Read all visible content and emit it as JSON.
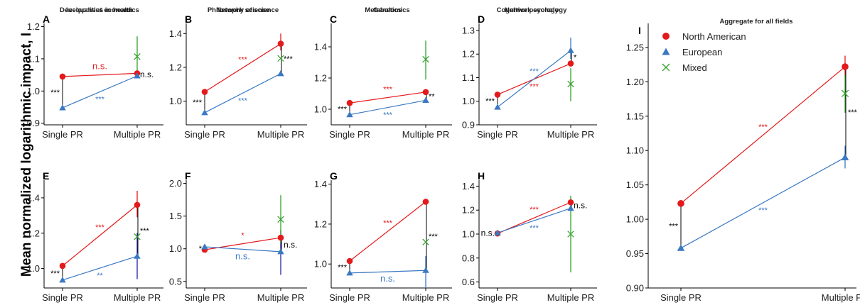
{
  "colors": {
    "north_american": "#e31a1c",
    "european": "#3a78c2",
    "mixed": "#33a02c",
    "bracket": "#000000",
    "bracket_blue": "#2222aa"
  },
  "ylabel": "Mean normalized logarithmic impact, I",
  "legend": [
    "North American",
    "European",
    "Mixed"
  ],
  "chart_data": [
    {
      "id": "A",
      "title": "Inequalities in health",
      "type": "line",
      "x": [
        "Single PR",
        "Multiple PR"
      ],
      "ylim": [
        0.895,
        1.21
      ],
      "yticks": [
        "0.9",
        "1.0",
        "1.1",
        "1.2"
      ],
      "yticks_v": [
        0.9,
        1.0,
        1.1,
        1.2
      ],
      "series": [
        {
          "name": "North American",
          "values": [
            1.045,
            1.055
          ]
        },
        {
          "name": "European",
          "values": [
            0.948,
            1.047
          ]
        },
        {
          "name": "Mixed",
          "values": [
            null,
            1.107
          ],
          "err": [
            null,
            [
              1.04,
              1.17
            ]
          ]
        }
      ],
      "sig": {
        "na": "n.s.",
        "eu": "***",
        "single": "***",
        "multiple": "n.s."
      }
    },
    {
      "id": "B",
      "title": "Network science",
      "type": "line",
      "x": [
        "Single PR",
        "Multiple PR"
      ],
      "ylim": [
        0.86,
        1.46
      ],
      "yticks": [
        "1.0",
        "1.2",
        "1.4"
      ],
      "yticks_v": [
        1.0,
        1.2,
        1.4
      ],
      "series": [
        {
          "name": "North American",
          "values": [
            1.055,
            1.34
          ],
          "err": [
            null,
            [
              1.3,
              1.4
            ]
          ]
        },
        {
          "name": "European",
          "values": [
            0.932,
            1.163
          ]
        },
        {
          "name": "Mixed",
          "values": [
            null,
            1.253
          ]
        }
      ],
      "sig": {
        "na": "***",
        "eu": "***",
        "single": "***",
        "multiple": "***"
      }
    },
    {
      "id": "C",
      "title": "Metabolomics",
      "type": "line",
      "x": [
        "Single PR",
        "Multiple PR"
      ],
      "ylim": [
        0.9,
        1.55
      ],
      "yticks": [
        "1.0",
        "1.2",
        "1.4"
      ],
      "yticks_v": [
        1.0,
        1.2,
        1.4
      ],
      "series": [
        {
          "name": "North American",
          "values": [
            1.04,
            1.11
          ]
        },
        {
          "name": "European",
          "values": [
            0.965,
            1.057
          ]
        },
        {
          "name": "Mixed",
          "values": [
            null,
            1.32
          ],
          "err": [
            null,
            [
              1.19,
              1.44
            ]
          ]
        }
      ],
      "sig": {
        "na": "***",
        "eu": "***",
        "single": "***",
        "multiple": "**"
      }
    },
    {
      "id": "D",
      "title": "Network ecology",
      "type": "line",
      "x": [
        "Single PR",
        "Multiple PR"
      ],
      "ylim": [
        0.9,
        1.33
      ],
      "yticks": [
        "0.9",
        "1.0",
        "1.1",
        "1.2",
        "1.3"
      ],
      "yticks_v": [
        0.9,
        1.0,
        1.1,
        1.2,
        1.3
      ],
      "series": [
        {
          "name": "North American",
          "values": [
            1.028,
            1.16
          ]
        },
        {
          "name": "European",
          "values": [
            0.975,
            1.215
          ],
          "err": [
            null,
            [
              1.18,
              1.27
            ]
          ]
        },
        {
          "name": "Mixed",
          "values": [
            null,
            1.073
          ],
          "err": [
            null,
            [
              1.0,
              1.14
            ]
          ]
        }
      ],
      "sig": {
        "na": "***",
        "eu": "***",
        "single": "***",
        "multiple": "*"
      }
    },
    {
      "id": "E",
      "title": "Development economics",
      "type": "line",
      "x": [
        "Single PR",
        "Multiple PR"
      ],
      "ylim": [
        0.89,
        1.5
      ],
      "yticks": [
        "1.0",
        "1.2",
        "1.4"
      ],
      "yticks_v": [
        1.0,
        1.2,
        1.4
      ],
      "series": [
        {
          "name": "North American",
          "values": [
            1.015,
            1.36
          ],
          "err": [
            null,
            [
              1.29,
              1.44
            ]
          ]
        },
        {
          "name": "European",
          "values": [
            0.935,
            1.07
          ],
          "err": [
            null,
            [
              0.94,
              1.2
            ]
          ]
        },
        {
          "name": "Mixed",
          "values": [
            null,
            1.18
          ]
        }
      ],
      "sig": {
        "na": "***",
        "eu": "**",
        "single": "***",
        "multiple": "***"
      }
    },
    {
      "id": "F",
      "title": "Philosophy of science",
      "type": "line",
      "x": [
        "Single PR",
        "Multiple PR"
      ],
      "ylim": [
        0.4,
        2.05
      ],
      "yticks": [
        "0.5",
        "1.0",
        "1.5",
        "2.0"
      ],
      "yticks_v": [
        0.5,
        1.0,
        1.5,
        2.0
      ],
      "series": [
        {
          "name": "North American",
          "values": [
            0.985,
            1.17
          ]
        },
        {
          "name": "European",
          "values": [
            1.03,
            0.955
          ],
          "err": [
            null,
            [
              0.6,
              1.29
            ]
          ]
        },
        {
          "name": "Mixed",
          "values": [
            null,
            1.45
          ],
          "err": [
            null,
            [
              1.1,
              1.82
            ]
          ]
        }
      ],
      "sig": {
        "na": "*",
        "eu": "n.s.",
        "single": "*",
        "multiple": "n.s."
      }
    },
    {
      "id": "G",
      "title": "Genetics",
      "type": "line",
      "x": [
        "Single PR",
        "Multiple PR"
      ],
      "ylim": [
        0.88,
        1.42
      ],
      "yticks": [
        "1.0",
        "1.2",
        "1.4"
      ],
      "yticks_v": [
        1.0,
        1.2,
        1.4
      ],
      "series": [
        {
          "name": "North American",
          "values": [
            1.015,
            1.312
          ]
        },
        {
          "name": "European",
          "values": [
            0.955,
            0.968
          ],
          "err": [
            null,
            [
              0.88,
              1.04
            ]
          ]
        },
        {
          "name": "Mixed",
          "values": [
            null,
            1.11
          ]
        }
      ],
      "sig": {
        "na": "***",
        "eu": "n.s.",
        "single": "***",
        "multiple": "***"
      }
    },
    {
      "id": "H",
      "title": "Cognitive psychology",
      "type": "line",
      "x": [
        "Single PR",
        "Multiple PR"
      ],
      "ylim": [
        0.55,
        1.45
      ],
      "yticks": [
        "0.6",
        "0.8",
        "1.0",
        "1.2",
        "1.4"
      ],
      "yticks_v": [
        0.6,
        0.8,
        1.0,
        1.2,
        1.4
      ],
      "series": [
        {
          "name": "North American",
          "values": [
            1.005,
            1.265
          ]
        },
        {
          "name": "European",
          "values": [
            1.01,
            1.215
          ]
        },
        {
          "name": "Mixed",
          "values": [
            null,
            1.0
          ],
          "err": [
            null,
            [
              0.68,
              1.32
            ]
          ]
        }
      ],
      "sig": {
        "na": "***",
        "eu": "***",
        "single": "n.s.",
        "multiple": "n.s."
      }
    },
    {
      "id": "I",
      "title": "Aggregate for all fields",
      "type": "line",
      "x": [
        "Single PR",
        "Multiple PR"
      ],
      "ylim": [
        0.9,
        1.285
      ],
      "yticks": [
        "0.90",
        "0.95",
        "1.00",
        "1.05",
        "1.10",
        "1.15",
        "1.20",
        "1.25"
      ],
      "yticks_v": [
        0.9,
        0.95,
        1.0,
        1.05,
        1.1,
        1.15,
        1.2,
        1.25
      ],
      "series": [
        {
          "name": "North American",
          "values": [
            1.023,
            1.222
          ],
          "err": [
            null,
            [
              1.208,
              1.238
            ]
          ]
        },
        {
          "name": "European",
          "values": [
            0.958,
            1.09
          ],
          "err": [
            null,
            [
              1.074,
              1.107
            ]
          ]
        },
        {
          "name": "Mixed",
          "values": [
            null,
            1.183
          ],
          "err": [
            null,
            [
              1.155,
              1.21
            ]
          ]
        }
      ],
      "sig": {
        "na": "***",
        "eu": "***",
        "single": "***",
        "multiple": "***"
      }
    }
  ]
}
